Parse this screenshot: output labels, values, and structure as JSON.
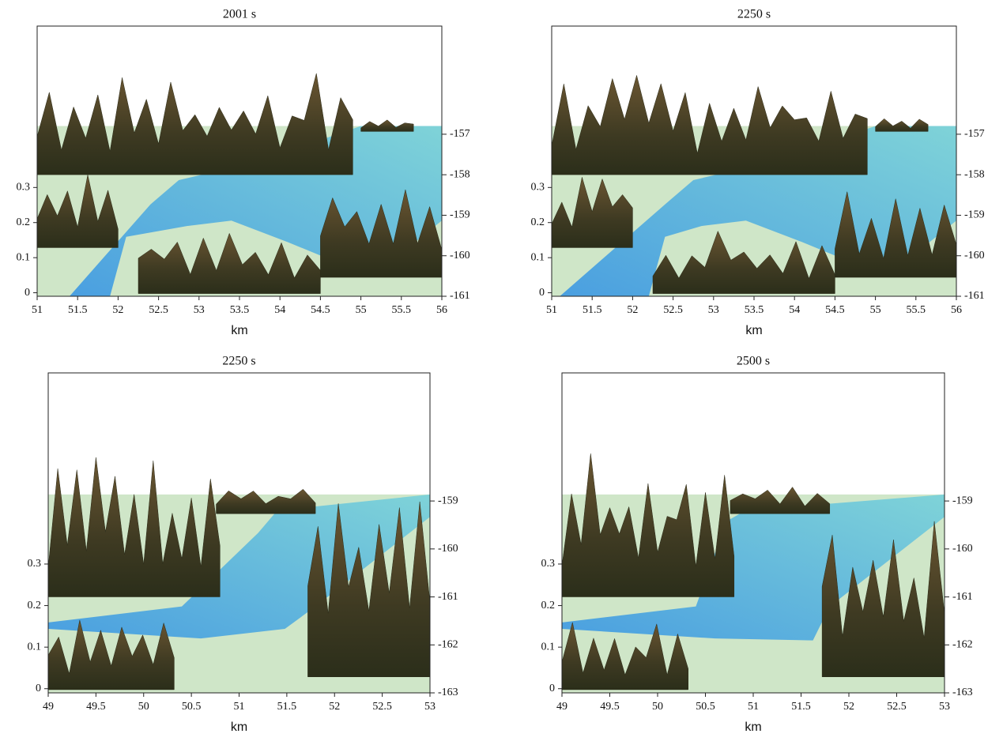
{
  "chart_data": [
    {
      "type": "surface",
      "title": "2001 s",
      "xlabel": "km",
      "xlim": [
        51,
        56
      ],
      "xticks": [
        51,
        51.5,
        52,
        52.5,
        53,
        53.5,
        54,
        54.5,
        55,
        55.5,
        56
      ],
      "ylim": [
        -0.01,
        0.76
      ],
      "yticks": [
        0,
        0.1,
        0.2,
        0.3
      ],
      "y2lim": [
        -161,
        -154.33
      ],
      "y2ticks": [
        -157,
        -158,
        -159,
        -160,
        -161
      ]
    },
    {
      "type": "surface",
      "title": "2250 s",
      "xlabel": "km",
      "xlim": [
        51,
        56
      ],
      "xticks": [
        51,
        51.5,
        52,
        52.5,
        53,
        53.5,
        54,
        54.5,
        55,
        55.5,
        56
      ],
      "ylim": [
        -0.01,
        0.76
      ],
      "yticks": [
        0,
        0.1,
        0.2,
        0.3
      ],
      "y2lim": [
        -161,
        -154.33
      ],
      "y2ticks": [
        -157,
        -158,
        -159,
        -160,
        -161
      ]
    },
    {
      "type": "surface",
      "title": "2250 s",
      "xlabel": "km",
      "xlim": [
        49,
        53
      ],
      "xticks": [
        49,
        49.5,
        50,
        50.5,
        51,
        51.5,
        52,
        52.5,
        53
      ],
      "ylim": [
        -0.01,
        0.76
      ],
      "yticks": [
        0,
        0.1,
        0.2,
        0.3
      ],
      "y2lim": [
        -163,
        -156.33
      ],
      "y2ticks": [
        -159,
        -160,
        -161,
        -162,
        -163
      ]
    },
    {
      "type": "surface",
      "title": "2500 s",
      "xlabel": "km",
      "xlim": [
        49,
        53
      ],
      "xticks": [
        49,
        49.5,
        50,
        50.5,
        51,
        51.5,
        52,
        52.5,
        53
      ],
      "ylim": [
        -0.01,
        0.76
      ],
      "yticks": [
        0,
        0.1,
        0.2,
        0.3
      ],
      "y2lim": [
        -163,
        -156.33
      ],
      "y2ticks": [
        -159,
        -160,
        -161,
        -162,
        -163
      ]
    }
  ]
}
